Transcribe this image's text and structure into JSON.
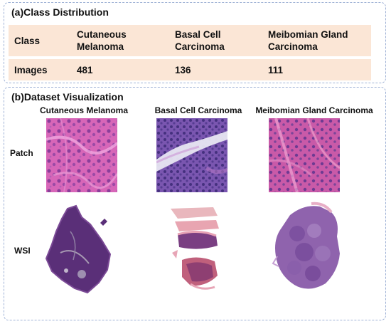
{
  "panel_a": {
    "title": "(a)Class Distribution",
    "headers": [
      "Class",
      "Cutaneous Melanoma",
      "Basal Cell Carcinoma",
      "Meibomian Gland Carcinoma"
    ],
    "header_lines": [
      [
        "Class"
      ],
      [
        "Cutaneous",
        "Melanoma"
      ],
      [
        "Basal Cell",
        "Carcinoma"
      ],
      [
        "Meibomian Gland",
        "Carcinoma"
      ]
    ],
    "row": [
      "Images",
      "481",
      "136",
      "111"
    ]
  },
  "panel_b": {
    "title": "(b)Dataset Visualization",
    "columns": [
      "Cutaneous Melanoma",
      "Basal Cell Carcinoma",
      "Meibomian Gland Carcinoma"
    ],
    "rows": [
      "Patch",
      "WSI"
    ]
  },
  "colors": {
    "panel_border": "#9fb2d6",
    "cell_fill": "#fbe6d6"
  }
}
